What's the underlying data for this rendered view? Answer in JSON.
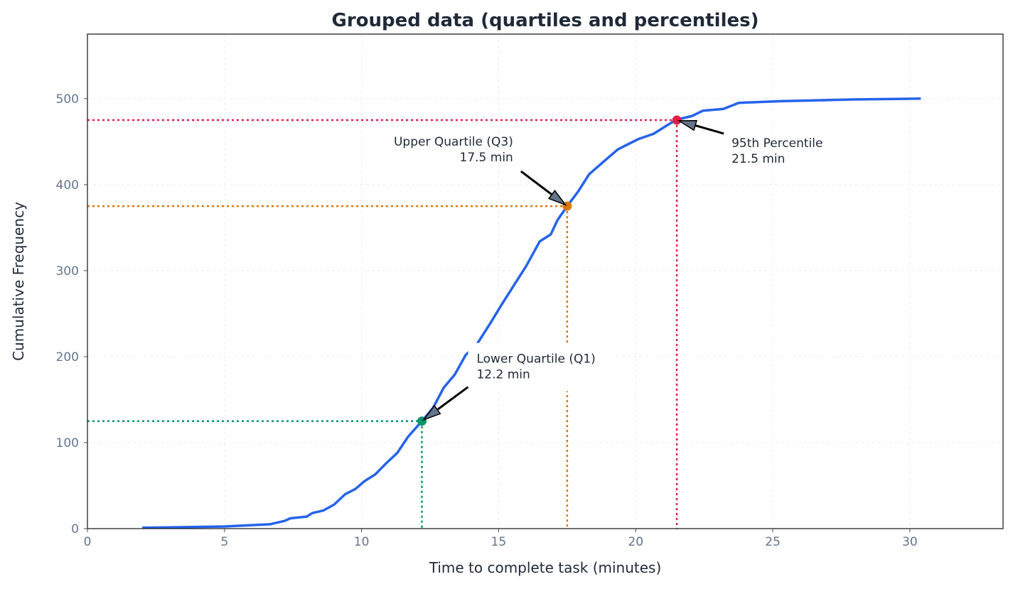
{
  "chart_data": {
    "type": "line",
    "title": "Grouped data (quartiles and percentiles)",
    "xlabel": "Time to complete task (minutes)",
    "ylabel": "Cumulative Frequency",
    "xlim": [
      0,
      33.4
    ],
    "ylim": [
      0,
      575
    ],
    "xticks": [
      0,
      5,
      10,
      15,
      20,
      25,
      30
    ],
    "yticks": [
      0,
      100,
      200,
      300,
      400,
      500
    ],
    "grid": true,
    "colors": {
      "curve": "#2563eb",
      "title": "#1f2937",
      "tick": "#64748b"
    },
    "series": [
      {
        "x": [
          2.0,
          5.0,
          6.66,
          7.2,
          7.4,
          8.0,
          8.2,
          8.6,
          9.0,
          9.4,
          9.77,
          10.1,
          10.5,
          10.9,
          11.3,
          11.7,
          12.2,
          12.6,
          13.0,
          13.4,
          13.8,
          14.2,
          14.7,
          15.1,
          15.5,
          16.0,
          16.5,
          16.9,
          17.15,
          17.5,
          17.9,
          18.3,
          18.8,
          19.35,
          20.1,
          20.65,
          21.45,
          22.07,
          22.46,
          23.2,
          23.76,
          25.3,
          27.9,
          30.4
        ],
        "y": [
          1,
          2.5,
          5,
          9,
          12,
          14,
          18,
          21,
          28,
          40,
          46,
          55,
          63,
          76,
          88,
          107,
          125,
          140,
          164,
          179,
          202,
          214,
          239,
          260,
          280,
          305,
          334,
          342,
          359,
          375,
          392,
          412,
          426,
          441,
          453,
          459,
          475,
          480,
          486,
          488,
          495,
          497,
          499,
          500
        ]
      }
    ],
    "markers": [
      {
        "label": "Lower Quartile (Q1)",
        "value_text": "12.2 min",
        "x": 12.2,
        "y": 125,
        "color": "#059669"
      },
      {
        "label": "Upper Quartile (Q3)",
        "value_text": "17.5 min",
        "x": 17.5,
        "y": 375,
        "color": "#d97706"
      },
      {
        "label": "95th Percentile",
        "value_text": "21.5 min",
        "x": 21.5,
        "y": 475,
        "color": "#e11d48"
      }
    ]
  }
}
